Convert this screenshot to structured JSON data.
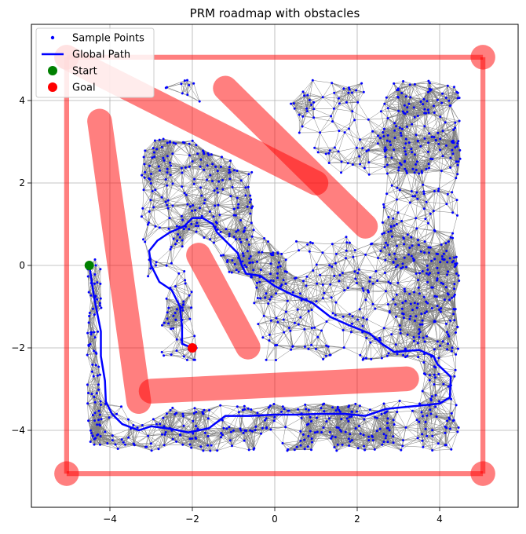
{
  "chart_data": {
    "type": "scatter",
    "title": "PRM roadmap with obstacles",
    "xlabel": "",
    "ylabel": "",
    "xlim": [
      -5.9,
      5.9
    ],
    "ylim": [
      -5.9,
      5.9
    ],
    "x_ticks": [
      -4,
      -2,
      0,
      2,
      4
    ],
    "y_ticks": [
      -4,
      -2,
      0,
      2,
      4
    ],
    "grid": true,
    "legend": {
      "placement": "top-left",
      "entries": [
        {
          "label": "Sample Points",
          "marker": "dot",
          "color": "#0000ff"
        },
        {
          "label": "Global Path",
          "marker": "line",
          "color": "#0000ff"
        },
        {
          "label": "Start",
          "marker": "circle",
          "color": "#008000"
        },
        {
          "label": "Goal",
          "marker": "circle",
          "color": "#ff0000"
        }
      ]
    },
    "colors": {
      "obstacle": "#ff0000",
      "sample_points": "#0000ff",
      "roadmap_edges": "#808080",
      "path": "#0000ff",
      "start": "#008000",
      "goal": "#ff0000"
    },
    "obstacles": [
      {
        "name": "boundary-top",
        "from": [
          -5.05,
          5.05
        ],
        "to": [
          5.05,
          5.05
        ],
        "width": 0.12
      },
      {
        "name": "boundary-right",
        "from": [
          5.05,
          5.05
        ],
        "to": [
          5.05,
          -5.05
        ],
        "width": 0.12
      },
      {
        "name": "boundary-bottom",
        "from": [
          5.05,
          -5.05
        ],
        "to": [
          -5.05,
          -5.05
        ],
        "width": 0.12
      },
      {
        "name": "boundary-left",
        "from": [
          -5.05,
          -5.05
        ],
        "to": [
          -5.05,
          5.05
        ],
        "width": 0.12
      },
      {
        "name": "diagonal-long",
        "from": [
          -5.05,
          5.05
        ],
        "to": [
          1.0,
          2.0
        ],
        "width": 0.6
      },
      {
        "name": "diagonal-upper",
        "from": [
          -1.2,
          4.3
        ],
        "to": [
          2.2,
          0.95
        ],
        "width": 0.6
      },
      {
        "name": "vertical-left",
        "from": [
          -4.25,
          3.5
        ],
        "to": [
          -3.3,
          -3.3
        ],
        "width": 0.6
      },
      {
        "name": "horizontal-low",
        "from": [
          -3.0,
          -3.05
        ],
        "to": [
          3.2,
          -2.75
        ],
        "width": 0.6
      },
      {
        "name": "diagonal-small",
        "from": [
          -1.85,
          0.25
        ],
        "to": [
          -0.65,
          -1.98
        ],
        "width": 0.6
      }
    ],
    "corner_circles": [
      [
        -5.05,
        5.05
      ],
      [
        5.05,
        5.05
      ],
      [
        5.05,
        -5.05
      ],
      [
        -5.05,
        -5.05
      ]
    ],
    "corner_circle_radius": 0.3,
    "sample_regions": [
      {
        "name": "bottom-band",
        "x": [
          -4.5,
          4.5
        ],
        "y": [
          -4.5,
          -3.35
        ],
        "count": 300
      },
      {
        "name": "left-column",
        "x": [
          -4.55,
          -4.2
        ],
        "y": [
          -4.4,
          0.3
        ],
        "count": 70
      },
      {
        "name": "right-region",
        "x": [
          2.6,
          4.5
        ],
        "y": [
          -3.3,
          4.5
        ],
        "count": 260
      },
      {
        "name": "upper-right",
        "x": [
          0.2,
          4.5
        ],
        "y": [
          2.2,
          4.5
        ],
        "count": 150
      },
      {
        "name": "middle-region",
        "x": [
          -0.5,
          4.5
        ],
        "y": [
          -2.3,
          0.7
        ],
        "count": 280
      },
      {
        "name": "upper-left",
        "x": [
          -3.25,
          -0.5
        ],
        "y": [
          -0.3,
          3.1
        ],
        "count": 230
      },
      {
        "name": "left-lower-pocket",
        "x": [
          -2.75,
          -1.9
        ],
        "y": [
          -2.3,
          -0.3
        ],
        "count": 45
      },
      {
        "name": "top-small-cluster",
        "x": [
          -2.7,
          -1.8
        ],
        "y": [
          3.8,
          4.5
        ],
        "count": 10
      }
    ],
    "path": [
      [
        -4.5,
        0.0
      ],
      [
        -4.38,
        -0.8
      ],
      [
        -4.22,
        -1.6
      ],
      [
        -4.22,
        -2.2
      ],
      [
        -4.12,
        -2.8
      ],
      [
        -4.1,
        -3.3
      ],
      [
        -3.95,
        -3.6
      ],
      [
        -3.7,
        -3.85
      ],
      [
        -3.3,
        -4.0
      ],
      [
        -3.0,
        -3.9
      ],
      [
        -2.5,
        -3.97
      ],
      [
        -2.1,
        -4.05
      ],
      [
        -1.6,
        -3.95
      ],
      [
        -1.2,
        -3.65
      ],
      [
        -0.6,
        -3.65
      ],
      [
        0.0,
        -3.62
      ],
      [
        0.5,
        -3.62
      ],
      [
        1.1,
        -3.6
      ],
      [
        1.7,
        -3.6
      ],
      [
        2.2,
        -3.65
      ],
      [
        2.7,
        -3.48
      ],
      [
        3.2,
        -3.43
      ],
      [
        3.7,
        -3.38
      ],
      [
        4.0,
        -3.35
      ],
      [
        4.25,
        -3.2
      ],
      [
        4.27,
        -2.7
      ],
      [
        3.95,
        -2.4
      ],
      [
        3.85,
        -2.2
      ],
      [
        3.5,
        -2.05
      ],
      [
        2.9,
        -2.1
      ],
      [
        2.6,
        -1.9
      ],
      [
        2.3,
        -1.65
      ],
      [
        1.8,
        -1.45
      ],
      [
        1.35,
        -1.25
      ],
      [
        0.9,
        -0.9
      ],
      [
        0.4,
        -0.7
      ],
      [
        0.0,
        -0.5
      ],
      [
        -0.35,
        -0.25
      ],
      [
        -0.7,
        -0.2
      ],
      [
        -0.8,
        0.0
      ],
      [
        -0.9,
        0.3
      ],
      [
        -1.2,
        0.6
      ],
      [
        -1.4,
        0.8
      ],
      [
        -1.5,
        1.0
      ],
      [
        -1.75,
        1.15
      ],
      [
        -2.0,
        1.15
      ],
      [
        -2.2,
        0.95
      ],
      [
        -2.55,
        0.8
      ],
      [
        -2.85,
        0.6
      ],
      [
        -3.05,
        0.35
      ],
      [
        -3.0,
        0.0
      ],
      [
        -2.8,
        -0.4
      ],
      [
        -2.5,
        -0.6
      ],
      [
        -2.3,
        -1.0
      ],
      [
        -2.25,
        -1.5
      ],
      [
        -2.25,
        -1.9
      ],
      [
        -2.0,
        -2.0
      ]
    ],
    "start": [
      -4.5,
      0.0
    ],
    "goal": [
      -2.0,
      -2.0
    ]
  }
}
